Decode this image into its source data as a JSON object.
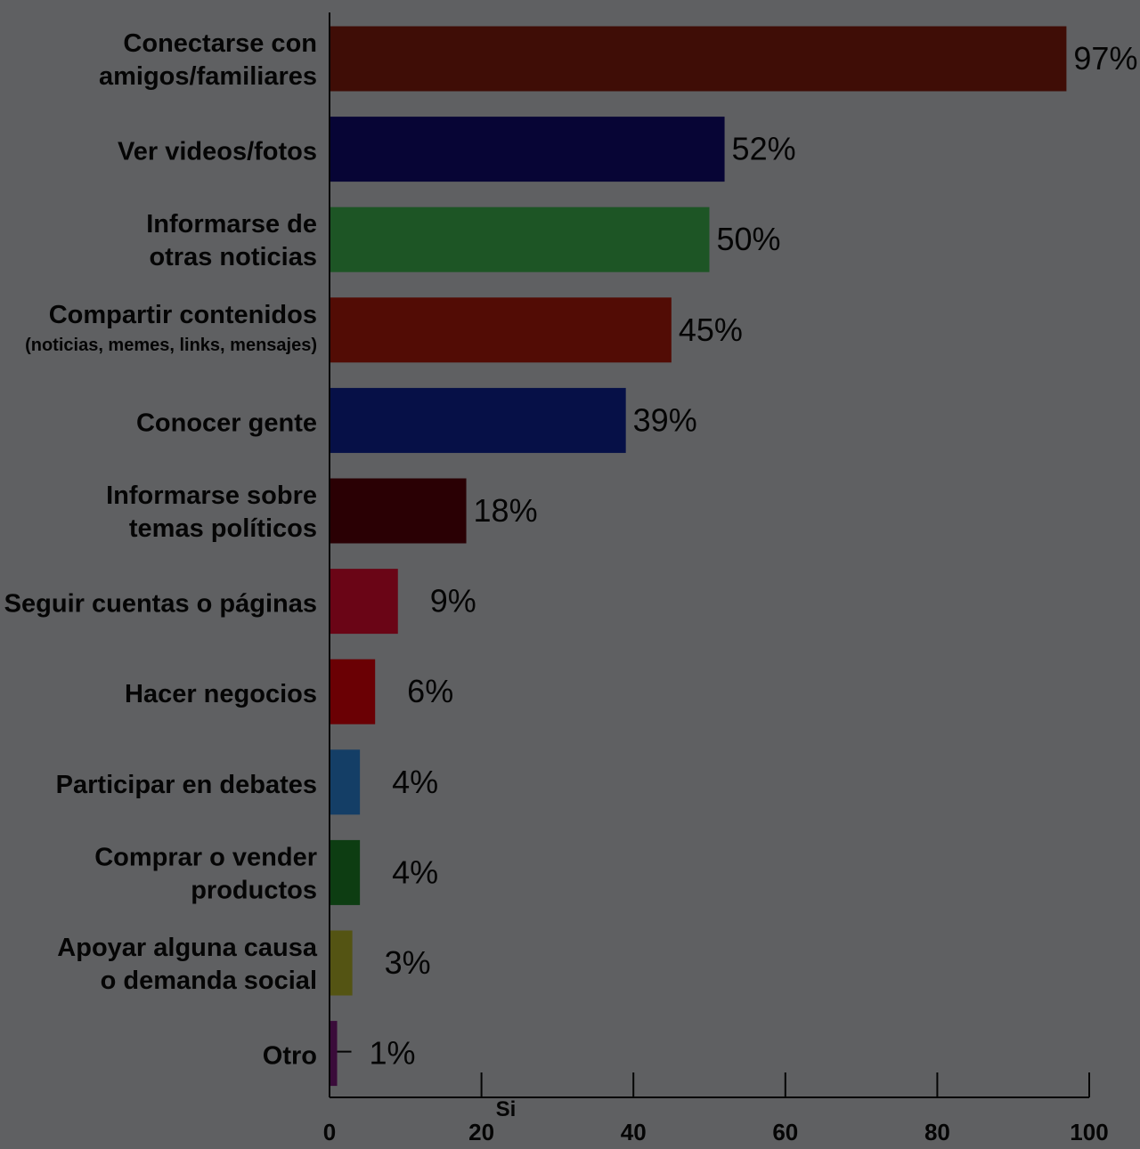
{
  "chart_data": {
    "type": "bar",
    "orientation": "horizontal",
    "xlabel": "Si",
    "xlim": [
      0,
      100
    ],
    "xticks": [
      "0",
      "20",
      "40",
      "60",
      "80",
      "100"
    ],
    "grid": false,
    "legend": "none",
    "categories": [
      [
        "Conectarse con",
        "amigos/familiares"
      ],
      [
        "Ver videos/fotos"
      ],
      [
        "Informarse de",
        "otras noticias"
      ],
      [
        "Compartir contenidos",
        "(noticias, memes, links, mensajes)"
      ],
      [
        "Conocer gente"
      ],
      [
        "Informarse sobre",
        "temas políticos"
      ],
      [
        "Seguir cuentas o páginas"
      ],
      [
        "Hacer negocios"
      ],
      [
        "Participar en debates"
      ],
      [
        "Comprar o vender",
        "productos"
      ],
      [
        "Apoyar alguna causa",
        "o demanda social"
      ],
      [
        "Otro"
      ]
    ],
    "values": [
      97,
      52,
      50,
      45,
      39,
      18,
      9,
      6,
      4,
      4,
      3,
      1
    ],
    "data_labels": [
      "97%",
      "52%",
      "50%",
      "45%",
      "39%",
      "18%",
      "9%",
      "6%",
      "4%",
      "4%",
      "3%",
      "1%"
    ],
    "colors": [
      "#3f0d06",
      "#070535",
      "#1d5525",
      "#520c05",
      "#061047",
      "#2a0004",
      "#6a0516",
      "#6a0004",
      "#143e66",
      "#0d3d12",
      "#545413",
      "#3a0c3a"
    ]
  }
}
